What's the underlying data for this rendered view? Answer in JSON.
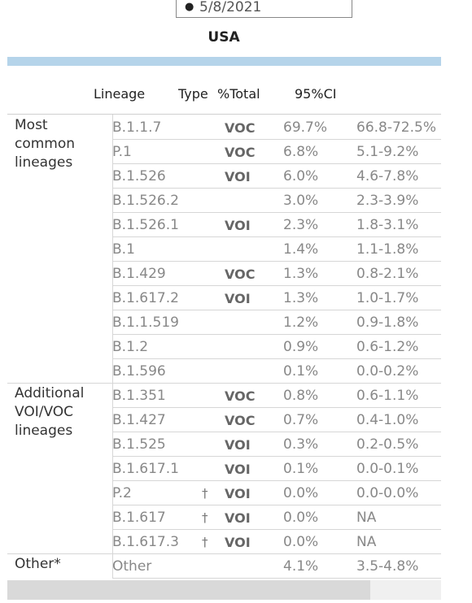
{
  "date_filter": {
    "value": "5/8/2021"
  },
  "title": "USA",
  "columns": {
    "lineage": "Lineage",
    "type": "Type",
    "pct": "%Total",
    "ci": "95%CI"
  },
  "groups": [
    {
      "label": "Most common lineages"
    },
    {
      "label": "Additional VOI/VOC lineages"
    },
    {
      "label": "Other*"
    }
  ],
  "rows": [
    {
      "lineage": "B.1.1.7",
      "dagger": "",
      "type": "VOC",
      "pct": "69.7%",
      "ci": "66.8-72.5%"
    },
    {
      "lineage": "P.1",
      "dagger": "",
      "type": "VOC",
      "pct": "6.8%",
      "ci": "5.1-9.2%"
    },
    {
      "lineage": "B.1.526",
      "dagger": "",
      "type": "VOI",
      "pct": "6.0%",
      "ci": "4.6-7.8%"
    },
    {
      "lineage": "B.1.526.2",
      "dagger": "",
      "type": "",
      "pct": "3.0%",
      "ci": "2.3-3.9%"
    },
    {
      "lineage": "B.1.526.1",
      "dagger": "",
      "type": "VOI",
      "pct": "2.3%",
      "ci": "1.8-3.1%"
    },
    {
      "lineage": "B.1",
      "dagger": "",
      "type": "",
      "pct": "1.4%",
      "ci": "1.1-1.8%"
    },
    {
      "lineage": "B.1.429",
      "dagger": "",
      "type": "VOC",
      "pct": "1.3%",
      "ci": "0.8-2.1%"
    },
    {
      "lineage": "B.1.617.2",
      "dagger": "",
      "type": "VOI",
      "pct": "1.3%",
      "ci": "1.0-1.7%"
    },
    {
      "lineage": "B.1.1.519",
      "dagger": "",
      "type": "",
      "pct": "1.2%",
      "ci": "0.9-1.8%"
    },
    {
      "lineage": "B.1.2",
      "dagger": "",
      "type": "",
      "pct": "0.9%",
      "ci": "0.6-1.2%"
    },
    {
      "lineage": "B.1.596",
      "dagger": "",
      "type": "",
      "pct": "0.1%",
      "ci": "0.0-0.2%"
    },
    {
      "lineage": "B.1.351",
      "dagger": "",
      "type": "VOC",
      "pct": "0.8%",
      "ci": "0.6-1.1%"
    },
    {
      "lineage": "B.1.427",
      "dagger": "",
      "type": "VOC",
      "pct": "0.7%",
      "ci": "0.4-1.0%"
    },
    {
      "lineage": "B.1.525",
      "dagger": "",
      "type": "VOI",
      "pct": "0.3%",
      "ci": "0.2-0.5%"
    },
    {
      "lineage": "B.1.617.1",
      "dagger": "",
      "type": "VOI",
      "pct": "0.1%",
      "ci": "0.0-0.1%"
    },
    {
      "lineage": "P.2",
      "dagger": "†",
      "type": "VOI",
      "pct": "0.0%",
      "ci": "0.0-0.0%"
    },
    {
      "lineage": "B.1.617",
      "dagger": "†",
      "type": "VOI",
      "pct": "0.0%",
      "ci": "NA"
    },
    {
      "lineage": "B.1.617.3",
      "dagger": "†",
      "type": "VOI",
      "pct": "0.0%",
      "ci": "NA"
    },
    {
      "lineage": "Other",
      "dagger": "",
      "type": "",
      "pct": "4.1%",
      "ci": "3.5-4.8%"
    }
  ]
}
